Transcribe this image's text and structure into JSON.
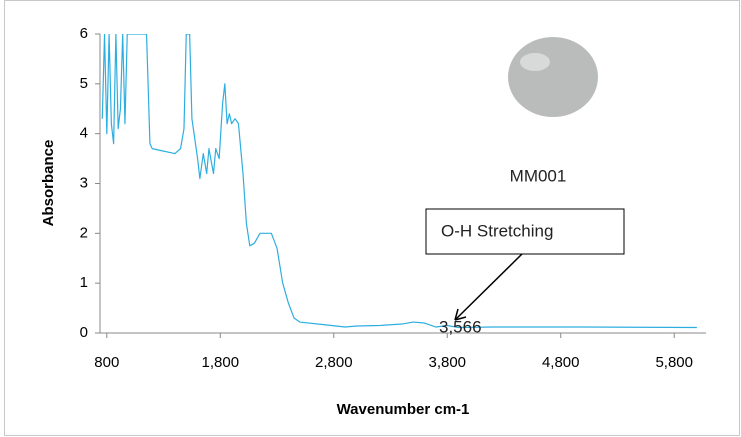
{
  "chart_data": {
    "type": "line",
    "x_label": "Wavenumber cm-1",
    "y_label": "Absorbance",
    "color": "#2eaee0",
    "x": [
      760,
      780,
      800,
      820,
      840,
      860,
      880,
      900,
      920,
      940,
      960,
      980,
      1000,
      1100,
      1150,
      1180,
      1200,
      1300,
      1400,
      1450,
      1480,
      1500,
      1530,
      1550,
      1600,
      1620,
      1650,
      1680,
      1700,
      1740,
      1760,
      1790,
      1820,
      1840,
      1860,
      1880,
      1900,
      1930,
      1960,
      2000,
      2030,
      2060,
      2100,
      2150,
      2250,
      2300,
      2350,
      2400,
      2450,
      2500,
      2700,
      2900,
      3000,
      3200,
      3400,
      3500,
      3600,
      3700,
      3800,
      3900,
      4200,
      5000,
      6000
    ],
    "values": [
      4.3,
      6,
      4.0,
      6,
      4.2,
      3.8,
      6,
      4.1,
      4.5,
      6,
      4.2,
      6,
      6,
      6,
      6,
      3.8,
      3.7,
      3.65,
      3.6,
      3.7,
      4.1,
      6,
      6,
      4.3,
      3.5,
      3.1,
      3.6,
      3.2,
      3.7,
      3.2,
      3.7,
      3.5,
      4.6,
      5.0,
      4.2,
      4.4,
      4.2,
      4.3,
      4.2,
      3.2,
      2.2,
      1.75,
      1.8,
      2.0,
      2.0,
      1.7,
      1.0,
      0.6,
      0.3,
      0.22,
      0.17,
      0.12,
      0.14,
      0.15,
      0.18,
      0.22,
      0.2,
      0.12,
      0.15,
      0.11,
      0.12,
      0.12,
      0.11
    ],
    "xlim": [
      740,
      6080
    ],
    "ylim": [
      0,
      6
    ],
    "xticks": [
      800,
      {
        "value": 1800,
        "label": "1,800"
      },
      {
        "value": 2800,
        "label": "2,800"
      },
      {
        "value": 3800,
        "label": "3,800"
      },
      {
        "value": 4800,
        "label": "4,800"
      },
      {
        "value": 5800,
        "label": "5,800"
      }
    ],
    "yticks": [
      0,
      1,
      2,
      3,
      4,
      5,
      6
    ],
    "annotations": [
      {
        "text": "MM001"
      },
      {
        "text": "O-H Stretching"
      },
      {
        "text": "3,566"
      }
    ]
  }
}
